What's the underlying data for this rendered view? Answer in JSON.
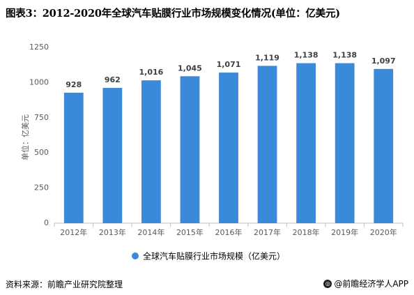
{
  "header": {
    "title": "图表3：2012-2020年全球汽车贴膜行业市场规模变化情况(单位：亿美元)"
  },
  "chart_data": {
    "type": "bar",
    "categories": [
      "2012年",
      "2013年",
      "2014年",
      "2015年",
      "2016年",
      "2017年",
      "2018年",
      "2019年",
      "2020年"
    ],
    "series": [
      {
        "name": "全球汽车贴膜行业市场规模（亿美元）",
        "values": [
          928,
          962,
          1016,
          1045,
          1071,
          1119,
          1138,
          1138,
          1097
        ]
      }
    ],
    "data_labels": [
      "928",
      "962",
      "1,016",
      "1,045",
      "1,071",
      "1,119",
      "1,138",
      "1,138",
      "1,097"
    ],
    "ylabel": "单位：亿美元",
    "ylim": [
      0,
      1250
    ],
    "yticks": [
      0,
      250,
      500,
      750,
      1000,
      1250
    ],
    "grid": false,
    "legend_position": "bottom",
    "bar_color": "#3b8ad9"
  },
  "footer": {
    "source": "资料来源：前瞻产业研究院整理",
    "brand": "@前瞻经济学人APP"
  }
}
